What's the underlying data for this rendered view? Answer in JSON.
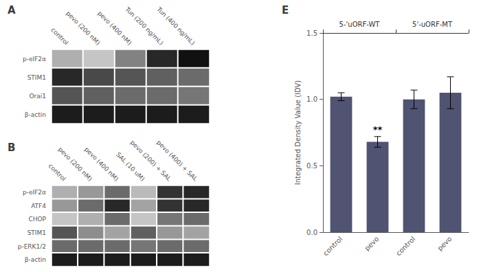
{
  "chart_data": [
    {
      "type": "heatmap",
      "title": "A",
      "categories": [
        "control",
        "pevo (200 nM)",
        "pevo (400 nM)",
        "Tun (200 ng/mL)",
        "Tun (400 ng/mL)"
      ],
      "y_categories": [
        "p-eIF2α",
        "STIM1",
        "Orai1",
        "β-actin"
      ],
      "values": [
        [
          0.3,
          0.2,
          0.5,
          0.9,
          1.0
        ],
        [
          0.9,
          0.75,
          0.7,
          0.65,
          0.6
        ],
        [
          0.7,
          0.65,
          0.6,
          0.6,
          0.55
        ],
        [
          0.95,
          0.95,
          0.95,
          0.95,
          0.95
        ]
      ],
      "color_range": [
        0,
        1
      ]
    },
    {
      "type": "heatmap",
      "title": "B",
      "categories": [
        "control",
        "pevo (200 nM)",
        "pevo (400 nM)",
        "SAL (10 uM)",
        "pevo (200) + SAL",
        "pevo (400) + SAL"
      ],
      "y_categories": [
        "p-eIF2α",
        "ATF4",
        "CHOP",
        "STIM1",
        "p-ERK1/2",
        "β-actin"
      ],
      "values": [
        [
          0.3,
          0.4,
          0.6,
          0.25,
          0.85,
          0.9
        ],
        [
          0.4,
          0.6,
          0.9,
          0.35,
          0.85,
          0.9
        ],
        [
          0.2,
          0.3,
          0.6,
          0.2,
          0.55,
          0.6
        ],
        [
          0.7,
          0.45,
          0.35,
          0.65,
          0.4,
          0.35
        ],
        [
          0.6,
          0.6,
          0.6,
          0.55,
          0.6,
          0.6
        ],
        [
          0.95,
          0.95,
          0.95,
          0.95,
          0.95,
          0.95
        ]
      ],
      "color_range": [
        0,
        1
      ]
    },
    {
      "type": "bar",
      "title": "E",
      "categories": [
        "control",
        "pevo",
        "control",
        "pevo"
      ],
      "values": [
        1.02,
        0.68,
        1.0,
        1.05
      ],
      "errors": [
        0.03,
        0.04,
        0.07,
        0.12
      ],
      "significance": [
        null,
        "**",
        null,
        null
      ],
      "group_labels": [
        "5-'uORF-WT",
        "5'-uORF-MT"
      ],
      "ylabel": "Integrated Density Value (IDV)",
      "ylim": [
        0,
        1.5
      ],
      "yticks": [
        {
          "value": 0,
          "label": "0.0"
        },
        0.5,
        {
          "value": 1.0,
          "label": "1.0"
        },
        1.5
      ],
      "grid": false
    }
  ]
}
